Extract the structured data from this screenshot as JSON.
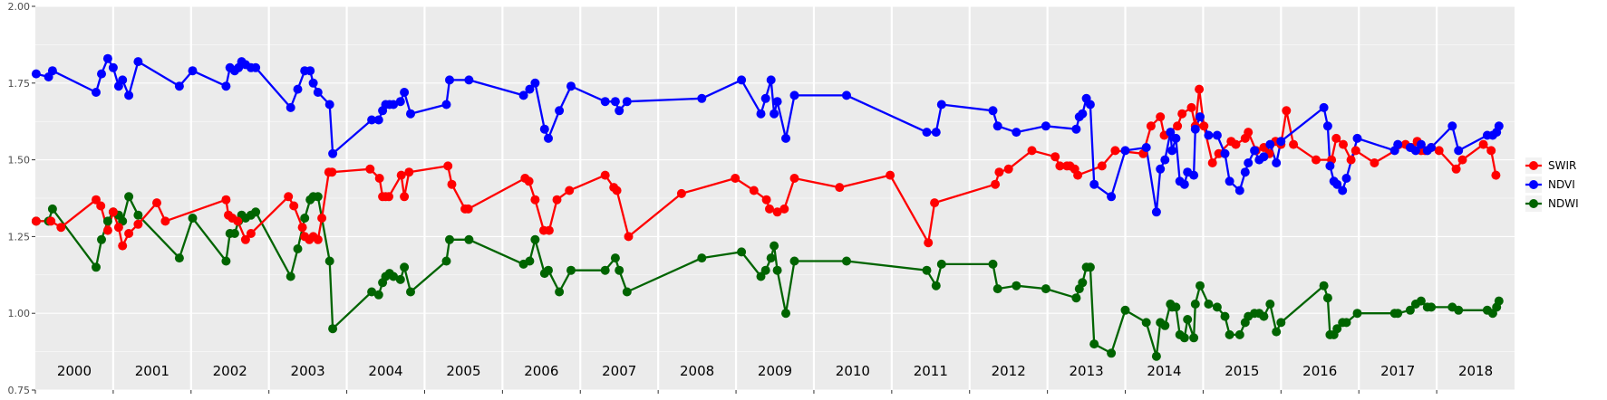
{
  "chart_data": {
    "type": "line",
    "title": "",
    "xlabel": "",
    "ylabel": "",
    "ylim": [
      0.75,
      2.0
    ],
    "yticks": [
      "0.75",
      "1.00",
      "1.25",
      "1.50",
      "1.75",
      "2.00"
    ],
    "xlim": [
      2000.0,
      2019.0
    ],
    "grid": true,
    "legend_position": "right",
    "year_labels": [
      "2000",
      "2001",
      "2002",
      "2003",
      "2004",
      "2005",
      "2006",
      "2007",
      "2008",
      "2009",
      "2010",
      "2011",
      "2012",
      "2013",
      "2014",
      "2015",
      "2016",
      "2017",
      "2018"
    ],
    "colors": {
      "SWIR": "#ff0000",
      "NDVI": "#0000ff",
      "NDWI": "#006400"
    },
    "series": [
      {
        "name": "SWIR",
        "x": [
          2000.01,
          2000.2,
          2000.33,
          2000.78,
          2000.84,
          2000.93,
          2001.0,
          2001.07,
          2001.12,
          2001.2,
          2001.32,
          2001.56,
          2001.67,
          2002.45,
          2002.48,
          2002.53,
          2002.6,
          2002.7,
          2002.77,
          2003.25,
          2003.32,
          2003.43,
          2003.46,
          2003.52,
          2003.57,
          2003.63,
          2003.68,
          2003.77,
          2003.81,
          2004.3,
          2004.42,
          2004.46,
          2004.5,
          2004.54,
          2004.7,
          2004.74,
          2004.8,
          2005.3,
          2005.35,
          2005.52,
          2005.56,
          2006.29,
          2006.34,
          2006.42,
          2006.53,
          2006.6,
          2006.7,
          2006.86,
          2007.32,
          2007.43,
          2007.47,
          2007.62,
          2008.3,
          2008.99,
          2009.23,
          2009.39,
          2009.43,
          2009.53,
          2009.62,
          2009.75,
          2010.33,
          2010.98,
          2011.47,
          2011.55,
          2012.33,
          2012.38,
          2012.5,
          2012.8,
          2013.1,
          2013.16,
          2013.25,
          2013.29,
          2013.35,
          2013.39,
          2013.7,
          2013.87,
          2014.23,
          2014.33,
          2014.45,
          2014.5,
          2014.67,
          2014.73,
          2014.85,
          2014.9,
          2014.95,
          2015.01,
          2015.12,
          2015.2,
          2015.36,
          2015.42,
          2015.54,
          2015.58,
          2015.68,
          2015.78,
          2015.85,
          2015.93,
          2016.0,
          2016.07,
          2016.16,
          2016.45,
          2016.65,
          2016.71,
          2016.8,
          2016.9,
          2016.96,
          2017.2,
          2017.6,
          2017.68,
          2017.75,
          2017.8,
          2017.85,
          2017.93,
          2018.03,
          2018.25,
          2018.33,
          2018.6,
          2018.7,
          2018.76
        ],
        "y": [
          1.3,
          1.3,
          1.28,
          1.37,
          1.35,
          1.27,
          1.33,
          1.28,
          1.22,
          1.26,
          1.29,
          1.36,
          1.3,
          1.37,
          1.32,
          1.31,
          1.3,
          1.24,
          1.26,
          1.38,
          1.35,
          1.28,
          1.25,
          1.24,
          1.25,
          1.24,
          1.31,
          1.46,
          1.46,
          1.47,
          1.44,
          1.38,
          1.38,
          1.38,
          1.45,
          1.38,
          1.46,
          1.48,
          1.42,
          1.34,
          1.34,
          1.44,
          1.43,
          1.37,
          1.27,
          1.27,
          1.37,
          1.4,
          1.45,
          1.41,
          1.4,
          1.25,
          1.39,
          1.44,
          1.4,
          1.37,
          1.34,
          1.33,
          1.34,
          1.44,
          1.41,
          1.45,
          1.23,
          1.36,
          1.42,
          1.46,
          1.47,
          1.53,
          1.51,
          1.48,
          1.48,
          1.48,
          1.47,
          1.45,
          1.48,
          1.53,
          1.52,
          1.61,
          1.64,
          1.58,
          1.61,
          1.65,
          1.67,
          1.61,
          1.73,
          1.61,
          1.49,
          1.52,
          1.56,
          1.55,
          1.57,
          1.59,
          1.53,
          1.54,
          1.52,
          1.56,
          1.55,
          1.66,
          1.55,
          1.5,
          1.5,
          1.57,
          1.55,
          1.5,
          1.53,
          1.49,
          1.55,
          1.54,
          1.56,
          1.53,
          1.53,
          1.54,
          1.53,
          1.47,
          1.5,
          1.55,
          1.53,
          1.45
        ]
      },
      {
        "name": "NDVI",
        "x": [
          2000.01,
          2000.17,
          2000.22,
          2000.78,
          2000.85,
          2000.93,
          2001.0,
          2001.07,
          2001.12,
          2001.2,
          2001.32,
          2001.85,
          2002.02,
          2002.45,
          2002.5,
          2002.56,
          2002.61,
          2002.65,
          2002.7,
          2002.77,
          2002.83,
          2003.28,
          2003.37,
          2003.46,
          2003.53,
          2003.57,
          2003.63,
          2003.78,
          2003.82,
          2004.32,
          2004.41,
          2004.46,
          2004.5,
          2004.55,
          2004.6,
          2004.69,
          2004.74,
          2004.82,
          2005.28,
          2005.32,
          2005.57,
          2006.27,
          2006.35,
          2006.42,
          2006.54,
          2006.59,
          2006.73,
          2006.88,
          2007.32,
          2007.45,
          2007.5,
          2007.6,
          2008.56,
          2009.07,
          2009.32,
          2009.38,
          2009.45,
          2009.49,
          2009.53,
          2009.64,
          2009.75,
          2010.42,
          2011.45,
          2011.57,
          2011.64,
          2012.3,
          2012.36,
          2012.6,
          2012.98,
          2013.37,
          2013.41,
          2013.45,
          2013.5,
          2013.55,
          2013.6,
          2013.82,
          2014.0,
          2014.27,
          2014.4,
          2014.45,
          2014.51,
          2014.58,
          2014.6,
          2014.65,
          2014.7,
          2014.76,
          2014.8,
          2014.88,
          2014.9,
          2014.96,
          2015.07,
          2015.18,
          2015.28,
          2015.34,
          2015.47,
          2015.54,
          2015.58,
          2015.66,
          2015.72,
          2015.78,
          2015.86,
          2015.94,
          2016.0,
          2016.55,
          2016.6,
          2016.63,
          2016.68,
          2016.72,
          2016.79,
          2016.84,
          2016.98,
          2017.46,
          2017.5,
          2017.66,
          2017.73,
          2017.8,
          2017.88,
          2017.93,
          2018.2,
          2018.28,
          2018.65,
          2018.72,
          2018.77,
          2018.8
        ],
        "y": [
          1.78,
          1.77,
          1.79,
          1.72,
          1.78,
          1.83,
          1.8,
          1.74,
          1.76,
          1.71,
          1.82,
          1.74,
          1.79,
          1.74,
          1.8,
          1.79,
          1.8,
          1.82,
          1.81,
          1.8,
          1.8,
          1.67,
          1.73,
          1.79,
          1.79,
          1.75,
          1.72,
          1.68,
          1.52,
          1.63,
          1.63,
          1.66,
          1.68,
          1.68,
          1.68,
          1.69,
          1.72,
          1.65,
          1.68,
          1.76,
          1.76,
          1.71,
          1.73,
          1.75,
          1.6,
          1.57,
          1.66,
          1.74,
          1.69,
          1.69,
          1.66,
          1.69,
          1.7,
          1.76,
          1.65,
          1.7,
          1.76,
          1.65,
          1.69,
          1.57,
          1.71,
          1.71,
          1.59,
          1.59,
          1.68,
          1.66,
          1.61,
          1.59,
          1.61,
          1.6,
          1.64,
          1.65,
          1.7,
          1.68,
          1.42,
          1.38,
          1.53,
          1.54,
          1.33,
          1.47,
          1.5,
          1.59,
          1.53,
          1.57,
          1.43,
          1.42,
          1.46,
          1.45,
          1.6,
          1.64,
          1.58,
          1.58,
          1.52,
          1.43,
          1.4,
          1.46,
          1.49,
          1.53,
          1.5,
          1.51,
          1.55,
          1.49,
          1.56,
          1.67,
          1.61,
          1.48,
          1.43,
          1.42,
          1.4,
          1.44,
          1.57,
          1.53,
          1.55,
          1.54,
          1.53,
          1.55,
          1.53,
          1.54,
          1.61,
          1.53,
          1.58,
          1.58,
          1.59,
          1.61
        ]
      },
      {
        "name": "NDWI",
        "x": [
          2000.01,
          2000.17,
          2000.22,
          2000.78,
          2000.85,
          2000.93,
          2001.0,
          2001.07,
          2001.12,
          2001.2,
          2001.32,
          2001.85,
          2002.02,
          2002.45,
          2002.5,
          2002.56,
          2002.61,
          2002.65,
          2002.7,
          2002.77,
          2002.83,
          2003.28,
          2003.37,
          2003.46,
          2003.53,
          2003.57,
          2003.63,
          2003.78,
          2003.82,
          2004.32,
          2004.41,
          2004.46,
          2004.5,
          2004.55,
          2004.6,
          2004.69,
          2004.74,
          2004.82,
          2005.28,
          2005.32,
          2005.57,
          2006.27,
          2006.35,
          2006.42,
          2006.54,
          2006.59,
          2006.73,
          2006.88,
          2007.32,
          2007.45,
          2007.5,
          2007.6,
          2008.56,
          2009.07,
          2009.32,
          2009.38,
          2009.45,
          2009.49,
          2009.53,
          2009.64,
          2009.75,
          2010.42,
          2011.45,
          2011.57,
          2011.64,
          2012.3,
          2012.36,
          2012.6,
          2012.98,
          2013.37,
          2013.41,
          2013.45,
          2013.5,
          2013.55,
          2013.6,
          2013.82,
          2014.0,
          2014.27,
          2014.4,
          2014.45,
          2014.51,
          2014.58,
          2014.6,
          2014.65,
          2014.7,
          2014.76,
          2014.8,
          2014.88,
          2014.9,
          2014.96,
          2015.07,
          2015.18,
          2015.28,
          2015.34,
          2015.47,
          2015.54,
          2015.58,
          2015.66,
          2015.72,
          2015.78,
          2015.86,
          2015.94,
          2016.0,
          2016.55,
          2016.6,
          2016.63,
          2016.68,
          2016.72,
          2016.79,
          2016.84,
          2016.98,
          2017.46,
          2017.5,
          2017.66,
          2017.73,
          2017.8,
          2017.88,
          2017.93,
          2018.2,
          2018.28,
          2018.65,
          2018.72,
          2018.77,
          2018.8
        ],
        "y": [
          1.3,
          1.3,
          1.34,
          1.15,
          1.24,
          1.3,
          1.33,
          1.32,
          1.3,
          1.38,
          1.32,
          1.18,
          1.31,
          1.17,
          1.26,
          1.26,
          1.3,
          1.32,
          1.31,
          1.32,
          1.33,
          1.12,
          1.21,
          1.31,
          1.37,
          1.38,
          1.38,
          1.17,
          0.95,
          1.07,
          1.06,
          1.1,
          1.12,
          1.13,
          1.12,
          1.11,
          1.15,
          1.07,
          1.17,
          1.24,
          1.24,
          1.16,
          1.17,
          1.24,
          1.13,
          1.14,
          1.07,
          1.14,
          1.14,
          1.18,
          1.14,
          1.07,
          1.18,
          1.2,
          1.12,
          1.14,
          1.18,
          1.22,
          1.14,
          1.0,
          1.17,
          1.17,
          1.14,
          1.09,
          1.16,
          1.16,
          1.08,
          1.09,
          1.08,
          1.05,
          1.08,
          1.1,
          1.15,
          1.15,
          0.9,
          0.87,
          1.01,
          0.97,
          0.86,
          0.97,
          0.96,
          1.03,
          1.02,
          1.02,
          0.93,
          0.92,
          0.98,
          0.92,
          1.03,
          1.09,
          1.03,
          1.02,
          0.99,
          0.93,
          0.93,
          0.97,
          0.99,
          1.0,
          1.0,
          0.99,
          1.03,
          0.94,
          0.97,
          1.09,
          1.05,
          0.93,
          0.93,
          0.95,
          0.97,
          0.97,
          1.0,
          1.0,
          1.0,
          1.01,
          1.03,
          1.04,
          1.02,
          1.02,
          1.02,
          1.01,
          1.01,
          1.0,
          1.02,
          1.04
        ]
      }
    ]
  }
}
